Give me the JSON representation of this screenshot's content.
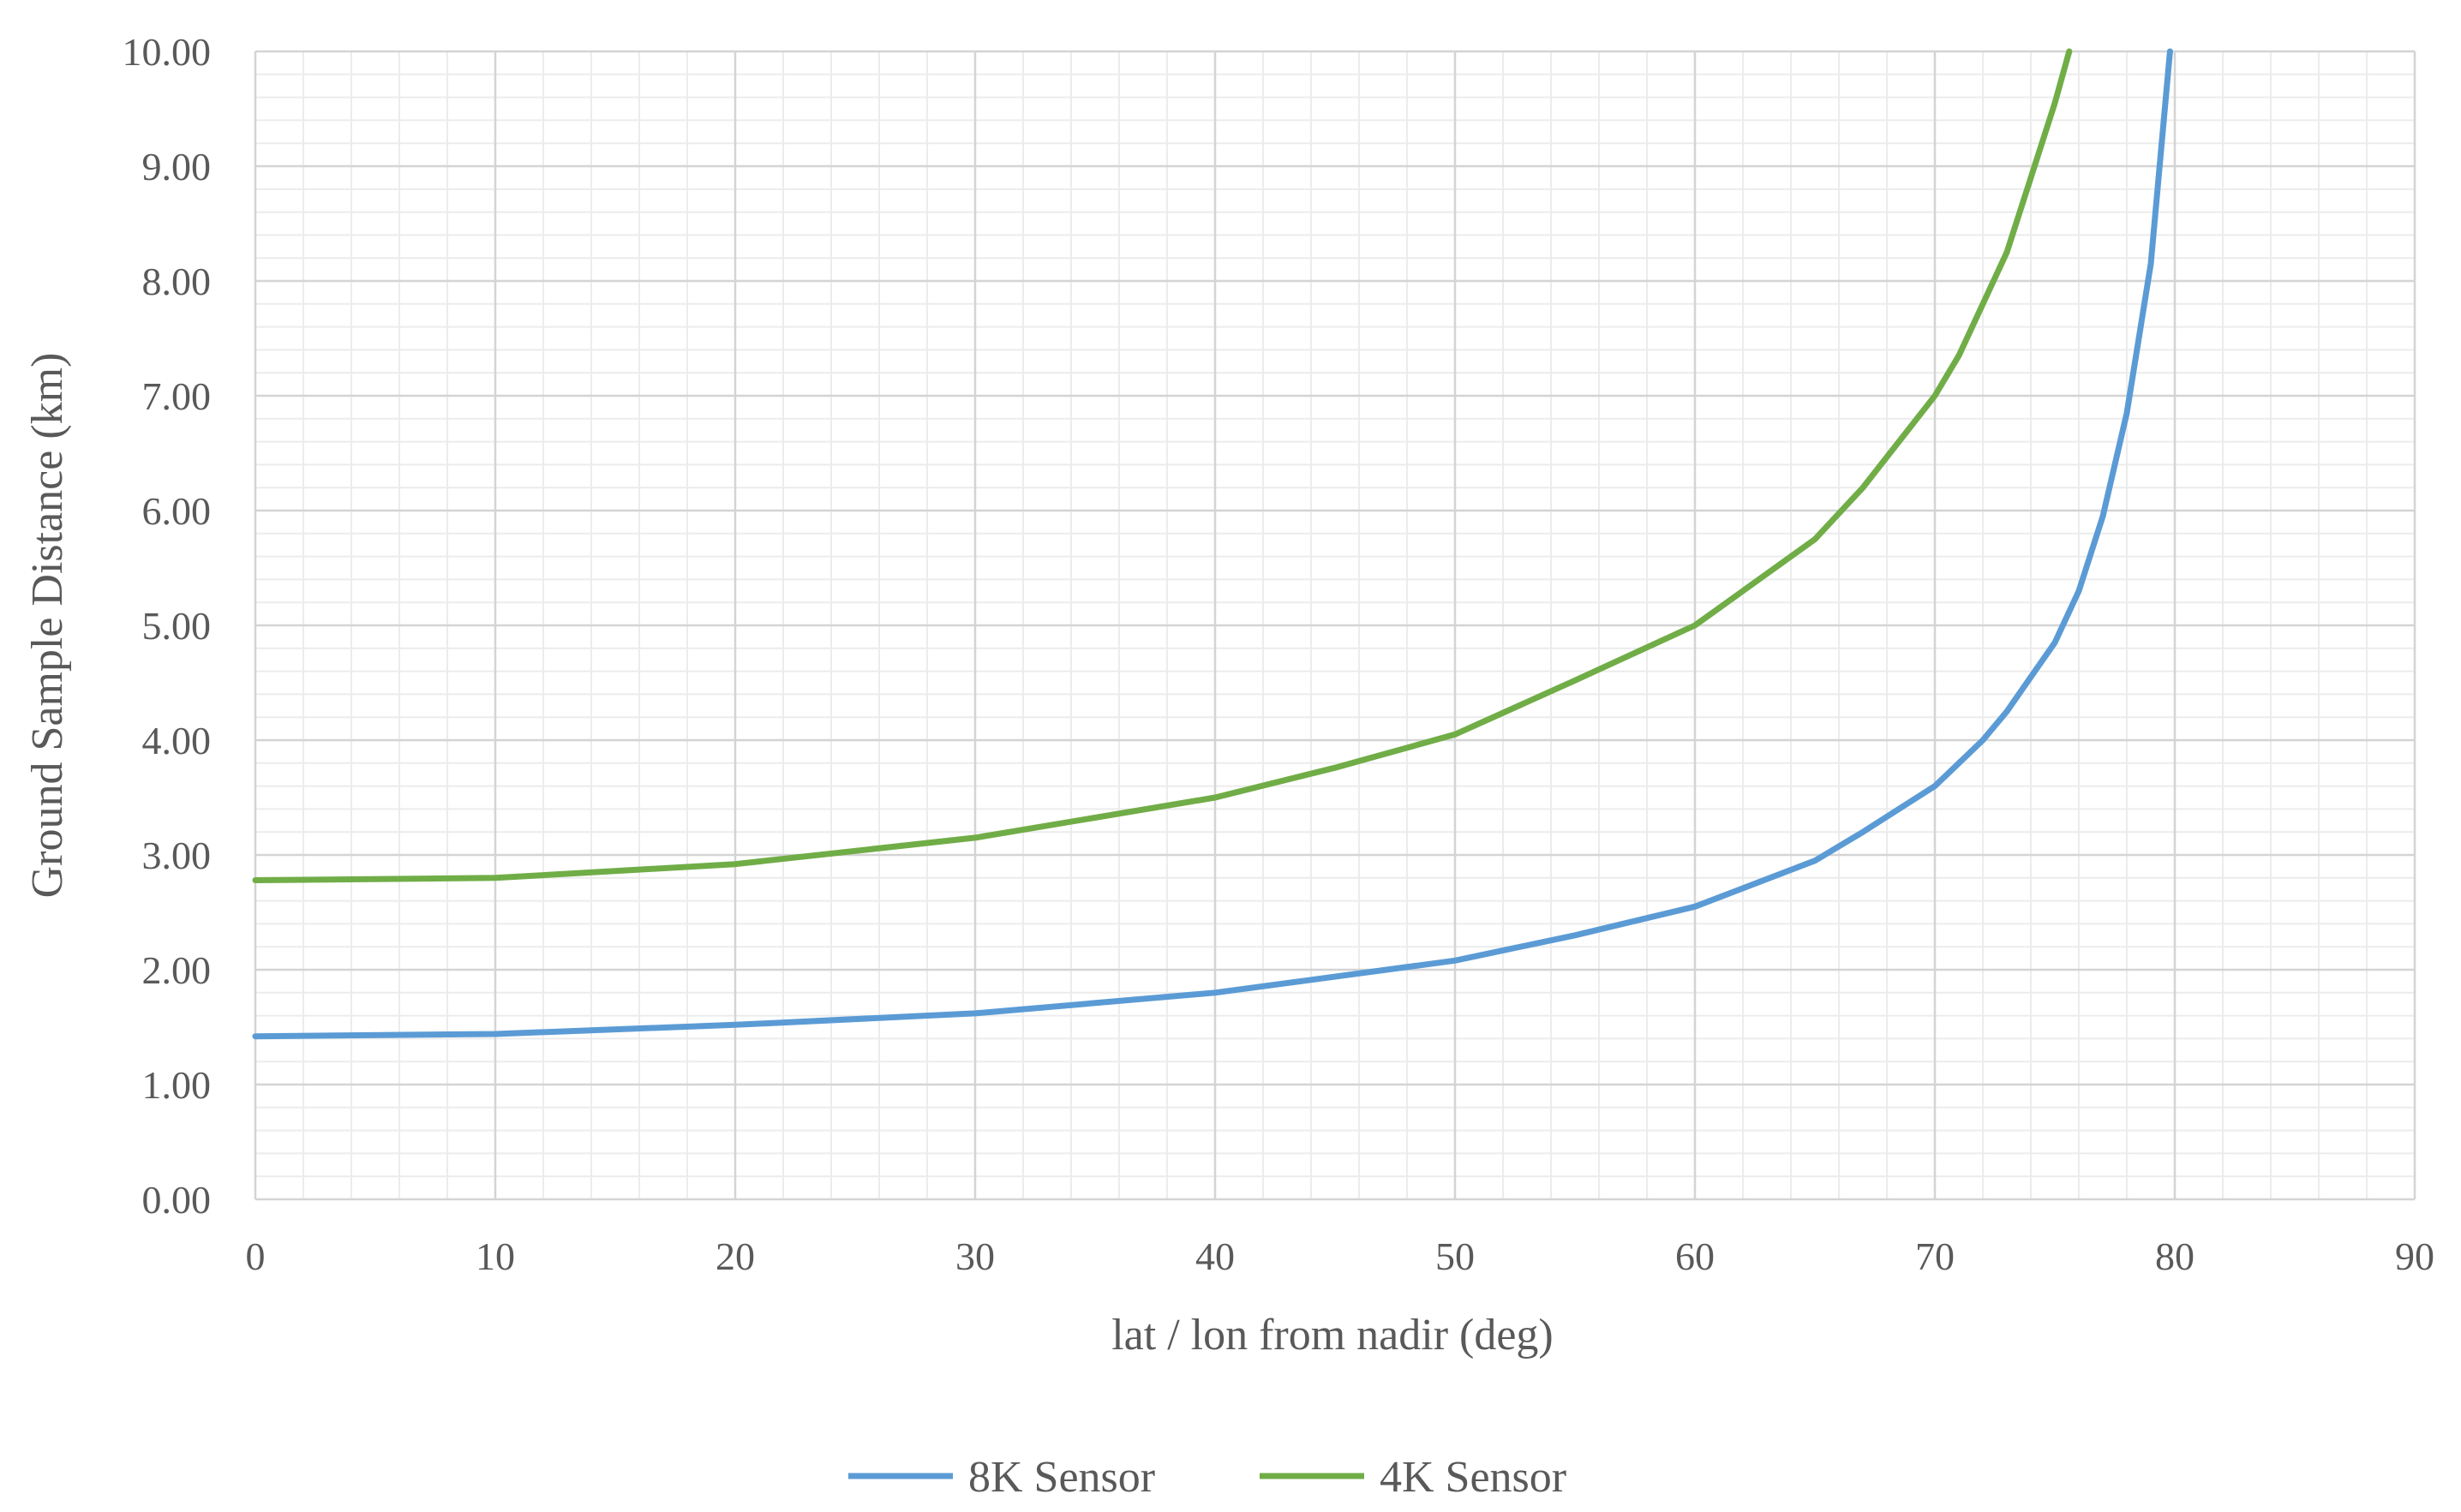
{
  "chart_data": {
    "type": "line",
    "title": "",
    "xlabel": "lat / lon from nadir (deg)",
    "ylabel": "Ground Sample Distance (km)",
    "xlim": [
      0,
      90
    ],
    "ylim": [
      0,
      10
    ],
    "x_ticks": [
      "0",
      "10",
      "20",
      "30",
      "40",
      "50",
      "60",
      "70",
      "80",
      "90"
    ],
    "y_ticks": [
      "0.00",
      "1.00",
      "2.00",
      "3.00",
      "4.00",
      "5.00",
      "6.00",
      "7.00",
      "8.00",
      "9.00",
      "10.00"
    ],
    "grid": true,
    "minor_grid": true,
    "legend_position": "bottom",
    "series": [
      {
        "name": "8K Sensor",
        "color": "#5b9bd5",
        "x": [
          0,
          10,
          20,
          30,
          40,
          50,
          55,
          60,
          65,
          67,
          70,
          71,
          72,
          73,
          74,
          75,
          76,
          77,
          78,
          79,
          79.8
        ],
        "y": [
          1.42,
          1.44,
          1.52,
          1.62,
          1.8,
          2.08,
          2.3,
          2.55,
          2.95,
          3.2,
          3.6,
          3.8,
          4.0,
          4.25,
          4.55,
          4.85,
          5.3,
          5.95,
          6.85,
          8.15,
          10.0
        ]
      },
      {
        "name": "4K Sensor",
        "color": "#70ad47",
        "x": [
          0,
          10,
          20,
          30,
          40,
          45,
          50,
          55,
          60,
          65,
          67,
          70,
          71,
          72,
          73,
          74,
          75,
          75.6
        ],
        "y": [
          2.78,
          2.8,
          2.92,
          3.15,
          3.5,
          3.76,
          4.05,
          4.52,
          5.0,
          5.75,
          6.2,
          7.0,
          7.35,
          7.8,
          8.25,
          8.9,
          9.55,
          10.0
        ]
      }
    ]
  }
}
